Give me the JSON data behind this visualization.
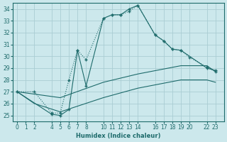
{
  "xlabel": "Humidex (Indice chaleur)",
  "bg_color": "#cce8ec",
  "grid_color": "#aacdd3",
  "line_color": "#1e6b6b",
  "xlim": [
    -0.5,
    24
  ],
  "ylim": [
    24.5,
    34.5
  ],
  "xticks": [
    0,
    1,
    2,
    4,
    5,
    6,
    7,
    8,
    10,
    11,
    12,
    13,
    14,
    16,
    17,
    18,
    19,
    20,
    22,
    23
  ],
  "yticks": [
    25,
    26,
    27,
    28,
    29,
    30,
    31,
    32,
    33,
    34
  ],
  "curve1_x": [
    0,
    2,
    4,
    5,
    6,
    7,
    8,
    10,
    11,
    12,
    13,
    14,
    16,
    17,
    18,
    19,
    20,
    22,
    23
  ],
  "curve1_y": [
    27.0,
    27.0,
    25.2,
    25.2,
    28.0,
    30.5,
    29.7,
    33.2,
    33.5,
    33.5,
    33.8,
    34.3,
    31.8,
    31.3,
    30.6,
    30.5,
    29.9,
    29.1,
    28.7
  ],
  "curve2_x": [
    0,
    4,
    5,
    6,
    7,
    8,
    10,
    11,
    12,
    13,
    14,
    16,
    17,
    18,
    19,
    22,
    23
  ],
  "curve2_y": [
    27.0,
    25.1,
    25.0,
    25.5,
    30.5,
    27.5,
    33.2,
    33.5,
    33.5,
    34.0,
    34.3,
    31.8,
    31.3,
    30.6,
    30.5,
    29.0,
    28.8
  ],
  "curve3_x": [
    0,
    5,
    10,
    14,
    19,
    22,
    23
  ],
  "curve3_y": [
    27.0,
    26.5,
    27.8,
    28.5,
    29.2,
    29.2,
    28.7
  ],
  "curve4_x": [
    0,
    2,
    5,
    10,
    14,
    19,
    22,
    23
  ],
  "curve4_y": [
    27.0,
    26.0,
    25.3,
    26.5,
    27.3,
    28.0,
    28.0,
    27.8
  ]
}
